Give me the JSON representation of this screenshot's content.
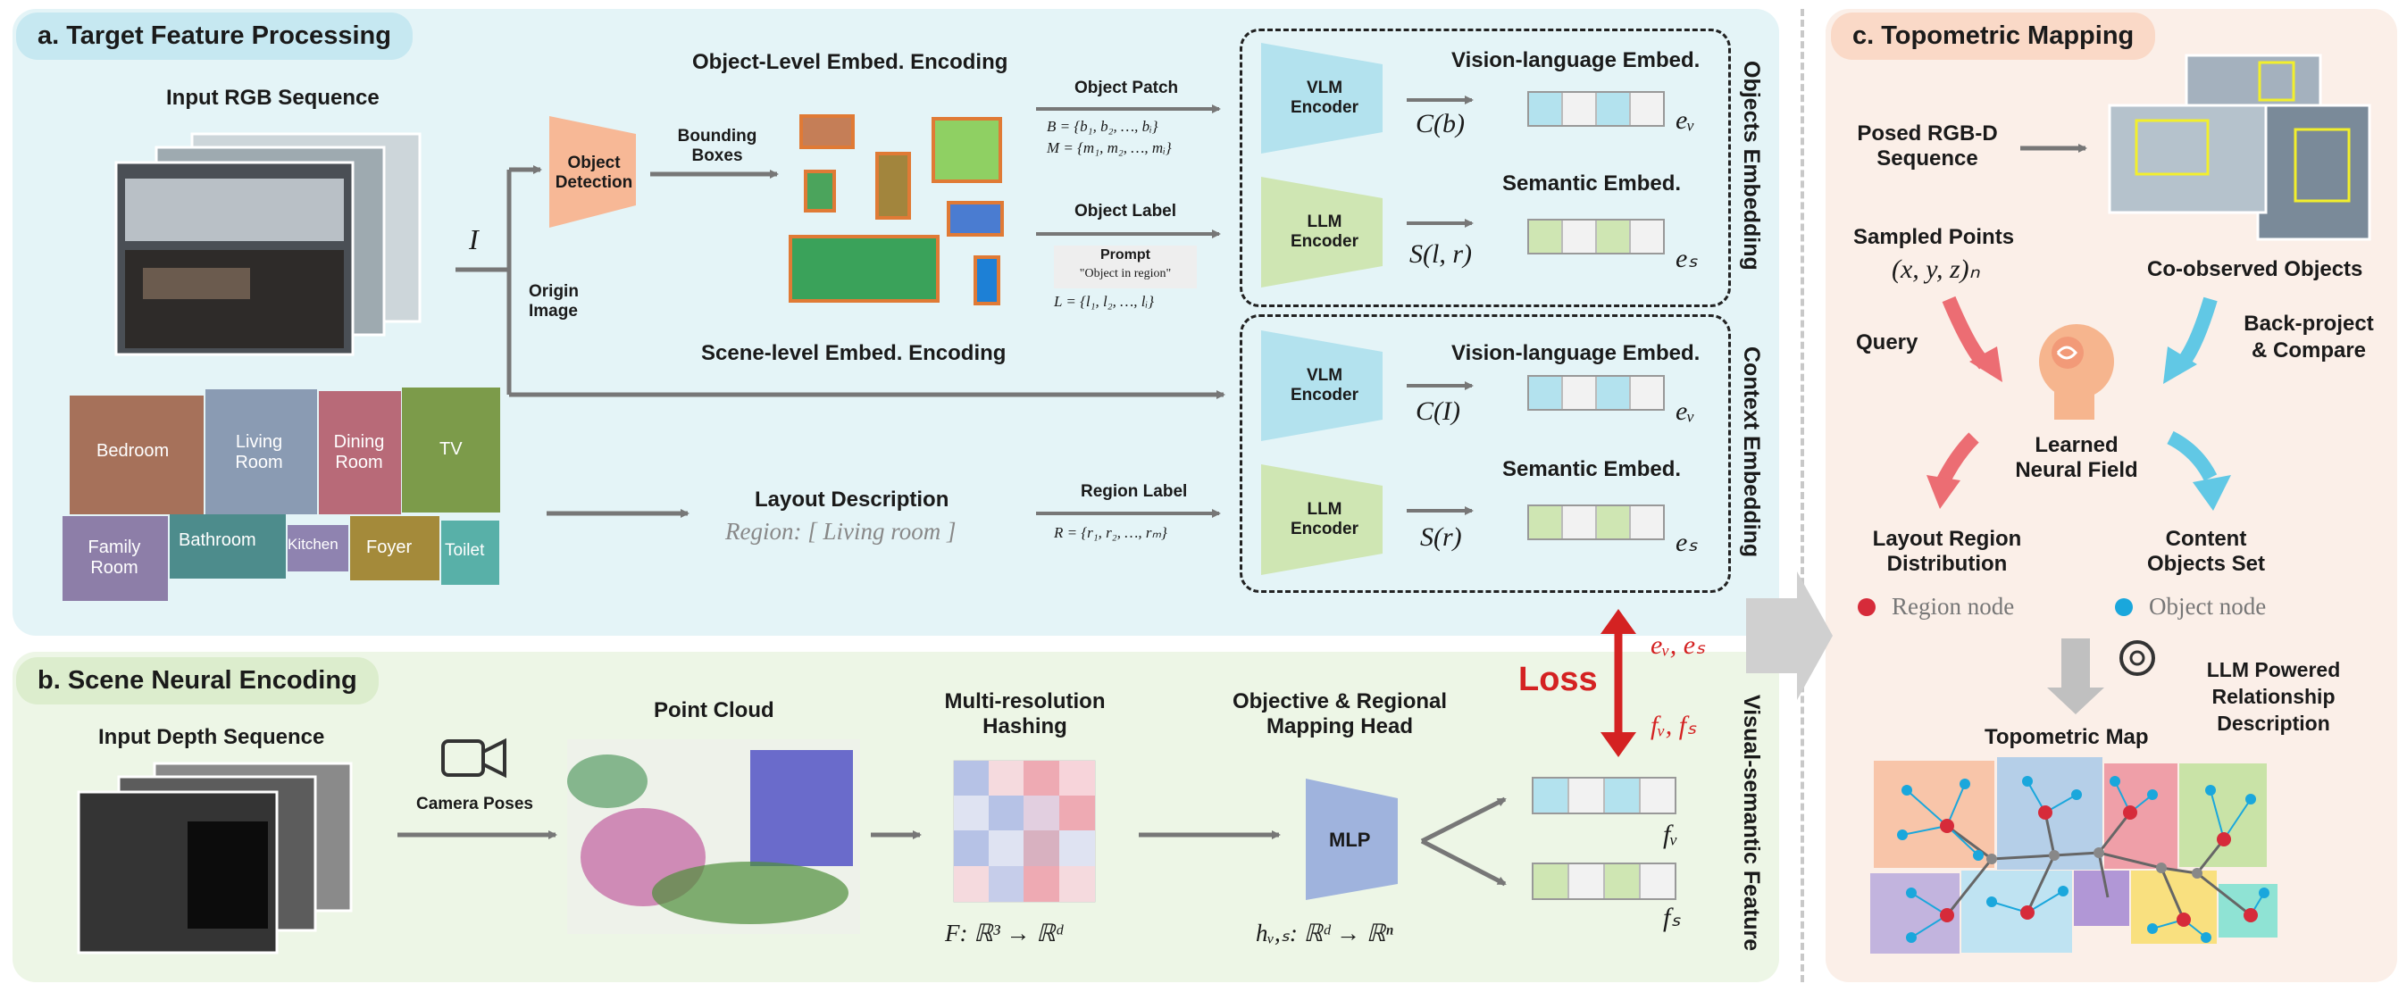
{
  "panel_a": {
    "title": "a. Target Feature Processing",
    "input_rgb": "Input RGB Sequence",
    "var_I": "I",
    "object_detection": "Object Detection",
    "bounding_boxes": "Bounding Boxes",
    "origin_image": "Origin Image",
    "object_level": "Object-Level Embed. Encoding",
    "object_patch": "Object Patch",
    "patch_eq1": "B = {b₁, b₂, …, bᵢ}",
    "patch_eq2": "M = {m₁, m₂, …, mᵢ}",
    "object_label": "Object Label",
    "prompt": "Prompt",
    "prompt_text": "\"Object in region\"",
    "label_eq": "L = {l₁, l₂, …, lᵢ}",
    "scene_level": "Scene-level Embed. Encoding",
    "layout_desc": "Layout Description",
    "region_text": "Region: [ Living room ]",
    "region_label": "Region Label",
    "region_eq": "R = {r₁, r₂, …, rₘ}",
    "rooms": [
      "Bedroom",
      "Living Room",
      "Dining Room",
      "TV",
      "Family Room",
      "Bathroom",
      "Kitchen",
      "Foyer",
      "Toilet"
    ],
    "vlm_encoder": "VLM Encoder",
    "llm_encoder": "LLM Encoder",
    "vl_embed": "Vision-language Embed.",
    "sem_embed": "Semantic Embed.",
    "c_b": "C(b)",
    "s_lr": "S(l, r)",
    "c_I": "C(I)",
    "s_r": "S(r)",
    "e_v": "eᵥ",
    "e_s": "eₛ",
    "objects_embedding": "Objects Embedding",
    "context_embedding": "Context Embedding"
  },
  "panel_b": {
    "title": "b. Scene Neural Encoding",
    "input_depth": "Input Depth Sequence",
    "camera_poses": "Camera Poses",
    "point_cloud": "Point Cloud",
    "hashing": "Multi-resolution Hashing",
    "hash_eq": "F: ℝ³ → ℝᵈ",
    "head": "Objective & Regional Mapping Head",
    "mlp": "MLP",
    "head_eq": "hᵥ,ₛ: ℝᵈ → ℝⁿ",
    "f_v": "fᵥ",
    "f_s": "fₛ",
    "visual_semantic": "Visual-semantic Feature"
  },
  "loss": {
    "label": "Loss",
    "top": "eᵥ, eₛ",
    "bottom": "fᵥ, fₛ"
  },
  "panel_c": {
    "title": "c. Topometric Mapping",
    "posed_rgbd": "Posed RGB-D Sequence",
    "sampled_points": "Sampled Points",
    "sampled_eq": "(x, y, z)ₙ",
    "coobserved": "Co-observed Objects",
    "query": "Query",
    "back_project": "Back-project & Compare",
    "neural_field": "Learned Neural Field",
    "layout_region": "Layout Region Distribution",
    "content_objects": "Content Objects Set",
    "region_node": "Region node",
    "object_node": "Object node",
    "llm_powered": "LLM Powered Relationship Description",
    "topometric_map": "Topometric Map"
  },
  "colors": {
    "panel_a_bg": "#e4f4f7",
    "panel_b_bg": "#edf6e6",
    "panel_c_bg": "#fbefe8",
    "pill_a": "#c6e8f1",
    "pill_b": "#dcedcd",
    "pill_c": "#fad9c7",
    "vlm": "#b3e2ee",
    "llm": "#cfe6b3",
    "detector": "#f7b896",
    "mlp": "#9fb3dd",
    "loss": "#d42222",
    "region_node": "#d62b3a",
    "object_node": "#1aa7dc"
  }
}
